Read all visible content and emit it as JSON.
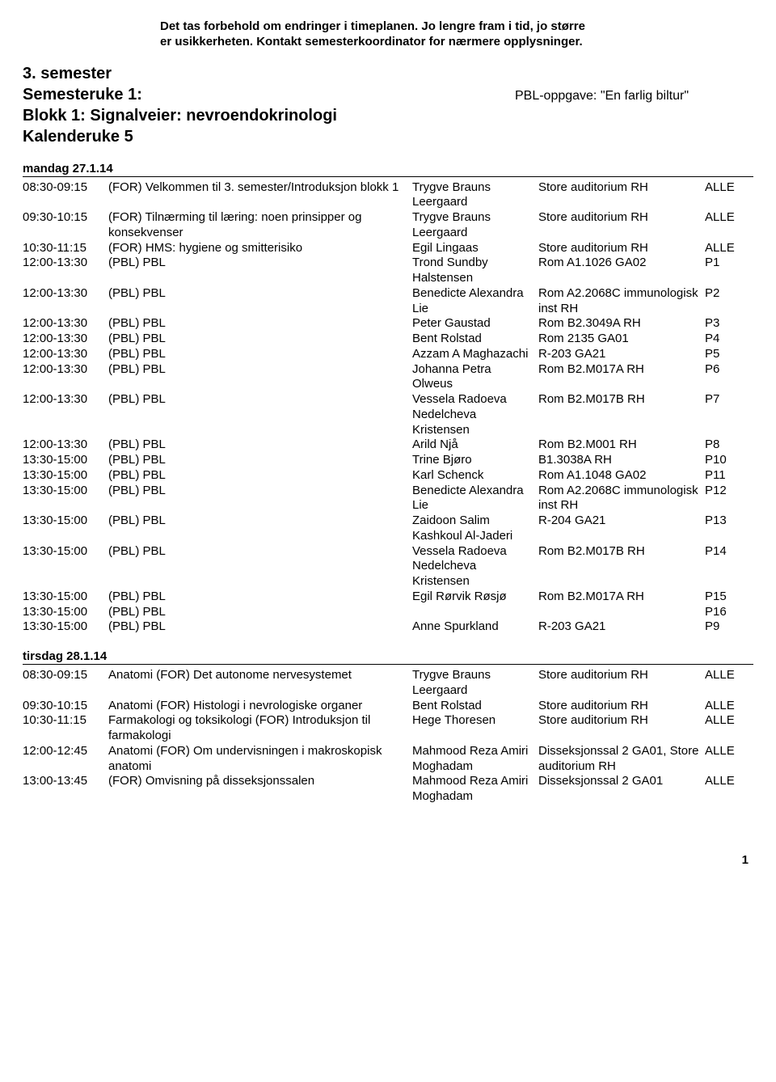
{
  "disclaimer": {
    "line1": "Det tas forbehold om endringer i timeplanen. Jo lengre fram i tid, jo større",
    "line2": "er usikkerheten. Kontakt semesterkoordinator for nærmere opplysninger."
  },
  "header": {
    "semester": "3. semester",
    "week_label": "Semesteruke 1:",
    "block_line": "Blokk 1: Signalveier: nevroendokrinologi",
    "cal_week": "Kalenderuke 5",
    "pbl_task": "PBL-oppgave: \"En farlig biltur\""
  },
  "days": [
    {
      "heading": "mandag 27.1.14",
      "rows": [
        {
          "time": "08:30-09:15",
          "desc": "(FOR) Velkommen til 3. semester/Introduksjon blokk 1",
          "person": "Trygve Brauns Leergaard",
          "room": "Store auditorium RH",
          "grp": "ALLE"
        },
        {
          "time": "09:30-10:15",
          "desc": "(FOR) Tilnærming til læring: noen prinsipper og konsekvenser",
          "person": "Trygve Brauns Leergaard",
          "room": "Store auditorium RH",
          "grp": "ALLE"
        },
        {
          "time": "10:30-11:15",
          "desc": "(FOR) HMS: hygiene og smitterisiko",
          "person": "Egil Lingaas",
          "room": "Store auditorium RH",
          "grp": "ALLE"
        },
        {
          "time": "12:00-13:30",
          "desc": "(PBL) PBL",
          "person": "Trond Sundby Halstensen",
          "room": "Rom A1.1026 GA02",
          "grp": "P1"
        },
        {
          "time": "12:00-13:30",
          "desc": "(PBL) PBL",
          "person": "Benedicte Alexandra Lie",
          "room": "Rom A2.2068C immunologisk inst RH",
          "grp": "P2"
        },
        {
          "time": "12:00-13:30",
          "desc": "(PBL) PBL",
          "person": "Peter Gaustad",
          "room": "Rom B2.3049A RH",
          "grp": "P3"
        },
        {
          "time": "12:00-13:30",
          "desc": "(PBL) PBL",
          "person": "Bent Rolstad",
          "room": "Rom 2135 GA01",
          "grp": "P4"
        },
        {
          "time": "12:00-13:30",
          "desc": "(PBL) PBL",
          "person": "Azzam A Maghazachi",
          "room": "R-203 GA21",
          "grp": "P5"
        },
        {
          "time": "12:00-13:30",
          "desc": "(PBL) PBL",
          "person": "Johanna Petra Olweus",
          "room": "Rom B2.M017A RH",
          "grp": "P6"
        },
        {
          "time": "12:00-13:30",
          "desc": "(PBL) PBL",
          "person": "Vessela Radoeva Nedelcheva Kristensen",
          "room": "Rom B2.M017B RH",
          "grp": "P7"
        },
        {
          "time": "12:00-13:30",
          "desc": "(PBL) PBL",
          "person": "Arild Njå",
          "room": "Rom B2.M001 RH",
          "grp": "P8"
        },
        {
          "time": "13:30-15:00",
          "desc": "(PBL) PBL",
          "person": "Trine Bjøro",
          "room": "B1.3038A RH",
          "grp": "P10"
        },
        {
          "time": "13:30-15:00",
          "desc": "(PBL) PBL",
          "person": "Karl Schenck",
          "room": "Rom A1.1048 GA02",
          "grp": "P11"
        },
        {
          "time": "13:30-15:00",
          "desc": "(PBL) PBL",
          "person": "Benedicte Alexandra Lie",
          "room": "Rom A2.2068C immunologisk inst RH",
          "grp": "P12"
        },
        {
          "time": "13:30-15:00",
          "desc": "(PBL) PBL",
          "person": "Zaidoon Salim Kashkoul Al-Jaderi",
          "room": "R-204 GA21",
          "grp": "P13"
        },
        {
          "time": "13:30-15:00",
          "desc": "(PBL) PBL",
          "person": "Vessela Radoeva Nedelcheva Kristensen",
          "room": "Rom B2.M017B RH",
          "grp": "P14"
        },
        {
          "time": "13:30-15:00",
          "desc": "(PBL) PBL",
          "person": "Egil Rørvik Røsjø",
          "room": "Rom B2.M017A RH",
          "grp": "P15"
        },
        {
          "time": "13:30-15:00",
          "desc": "(PBL) PBL",
          "person": "",
          "room": "",
          "grp": "P16"
        },
        {
          "time": "13:30-15:00",
          "desc": "(PBL) PBL",
          "person": "Anne Spurkland",
          "room": "R-203 GA21",
          "grp": "P9"
        }
      ]
    },
    {
      "heading": "tirsdag 28.1.14",
      "rows": [
        {
          "time": "08:30-09:15",
          "desc": "Anatomi (FOR) Det autonome nervesystemet",
          "person": "Trygve Brauns Leergaard",
          "room": "Store auditorium RH",
          "grp": "ALLE"
        },
        {
          "time": "09:30-10:15",
          "desc": "Anatomi (FOR) Histologi i nevrologiske organer",
          "person": "Bent Rolstad",
          "room": "Store auditorium RH",
          "grp": "ALLE"
        },
        {
          "time": "10:30-11:15",
          "desc": "Farmakologi og toksikologi (FOR) Introduksjon til farmakologi",
          "person": "Hege Thoresen",
          "room": "Store auditorium RH",
          "grp": "ALLE"
        },
        {
          "time": "12:00-12:45",
          "desc": "Anatomi (FOR) Om undervisningen i makroskopisk anatomi",
          "person": "Mahmood Reza Amiri Moghadam",
          "room": "Disseksjonssal 2 GA01, Store auditorium RH",
          "grp": "ALLE"
        },
        {
          "time": "13:00-13:45",
          "desc": "(FOR) Omvisning på disseksjonssalen",
          "person": "Mahmood Reza Amiri Moghadam",
          "room": "Disseksjonssal 2 GA01",
          "grp": "ALLE"
        }
      ]
    }
  ],
  "page_number": "1"
}
